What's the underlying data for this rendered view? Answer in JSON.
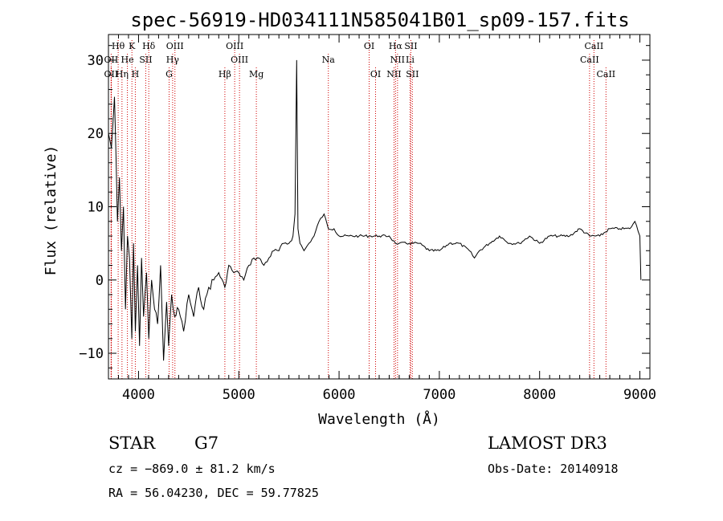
{
  "chart_data": {
    "type": "line",
    "title": "spec-56919-HD034111N585041B01_sp09-157.fits",
    "xlabel": "Wavelength (Å)",
    "ylabel": "Flux (relative)",
    "xlim": [
      3700,
      9100
    ],
    "ylim": [
      -13.5,
      33.5
    ],
    "x_ticks": [
      4000,
      5000,
      6000,
      7000,
      8000,
      9000
    ],
    "y_ticks": [
      -10,
      0,
      10,
      20,
      30
    ],
    "series": [
      {
        "name": "flux",
        "x": [
          3700,
          3730,
          3760,
          3790,
          3810,
          3830,
          3850,
          3870,
          3890,
          3910,
          3933,
          3950,
          3968,
          3990,
          4010,
          4030,
          4050,
          4080,
          4102,
          4130,
          4160,
          4190,
          4220,
          4250,
          4280,
          4300,
          4330,
          4360,
          4400,
          4450,
          4500,
          4550,
          4600,
          4650,
          4700,
          4750,
          4800,
          4861,
          4900,
          4950,
          5000,
          5050,
          5100,
          5150,
          5200,
          5250,
          5300,
          5350,
          5400,
          5450,
          5500,
          5540,
          5560,
          5577,
          5590,
          5610,
          5650,
          5700,
          5750,
          5800,
          5850,
          5893,
          5950,
          6000,
          6100,
          6200,
          6300,
          6400,
          6500,
          6563,
          6600,
          6700,
          6800,
          6900,
          7000,
          7100,
          7200,
          7300,
          7350,
          7400,
          7500,
          7600,
          7700,
          7800,
          7900,
          8000,
          8100,
          8200,
          8300,
          8400,
          8500,
          8600,
          8700,
          8800,
          8900,
          8950,
          9000,
          9010
        ],
        "y": [
          20,
          18,
          25,
          8,
          14,
          4,
          10,
          -4,
          6,
          3,
          -8,
          5,
          -7,
          2,
          -9,
          3,
          -5,
          1,
          -8,
          0,
          -4,
          -6,
          2,
          -11,
          -3,
          -9,
          -2,
          -5,
          -4,
          -7,
          -2,
          -5,
          -1,
          -4,
          -1,
          0,
          1,
          -1,
          2,
          1,
          1,
          0,
          2,
          3,
          3,
          2,
          3,
          4,
          4,
          5,
          5,
          6,
          9,
          30,
          7,
          5,
          4,
          5,
          6,
          8,
          9,
          7,
          7,
          6,
          6,
          6,
          6,
          6,
          6,
          5,
          5,
          5,
          5,
          4,
          4,
          5,
          5,
          4,
          3,
          4,
          5,
          6,
          5,
          5,
          6,
          5,
          6,
          6,
          6,
          7,
          6,
          6,
          7,
          7,
          7,
          8,
          6,
          0
        ]
      }
    ],
    "emission_lines": [
      {
        "name": "Hθ",
        "wl": 3797,
        "row": 0,
        "align": "middle"
      },
      {
        "name": "K",
        "wl": 3934,
        "row": 0,
        "align": "middle"
      },
      {
        "name": "Hδ",
        "wl": 4102,
        "row": 0,
        "align": "middle"
      },
      {
        "name": "OIII",
        "wl": 4363,
        "row": 0,
        "align": "middle"
      },
      {
        "name": "OIII",
        "wl": 4959,
        "row": 0,
        "align": "middle"
      },
      {
        "name": "OI",
        "wl": 6300,
        "row": 0,
        "align": "middle"
      },
      {
        "name": "Hα",
        "wl": 6563,
        "row": 0,
        "align": "middle"
      },
      {
        "name": "SII",
        "wl": 6716,
        "row": 0,
        "align": "middle"
      },
      {
        "name": "CaII",
        "wl": 8542,
        "row": 0,
        "align": "middle"
      },
      {
        "name": "OII",
        "wl": 3727,
        "row": 1,
        "align": "middle"
      },
      {
        "name": "He",
        "wl": 3889,
        "row": 1,
        "align": "middle"
      },
      {
        "name": "SII",
        "wl": 4072,
        "row": 1,
        "align": "middle"
      },
      {
        "name": "Hγ",
        "wl": 4340,
        "row": 1,
        "align": "middle"
      },
      {
        "name": "OIII",
        "wl": 5007,
        "row": 1,
        "align": "middle"
      },
      {
        "name": "NII",
        "wl": 6583,
        "row": 1,
        "align": "middle"
      },
      {
        "name": "Li",
        "wl": 6708,
        "row": 1,
        "align": "middle"
      },
      {
        "name": "CaII",
        "wl": 8498,
        "row": 1,
        "align": "middle"
      },
      {
        "name": "Na",
        "wl": 5893,
        "row": 1,
        "align": "middle"
      },
      {
        "name": "OII",
        "wl": 3727,
        "row": 2,
        "align": "middle"
      },
      {
        "name": "Hη",
        "wl": 3835,
        "row": 2,
        "align": "middle"
      },
      {
        "name": "H",
        "wl": 3968,
        "row": 2,
        "align": "middle"
      },
      {
        "name": "G",
        "wl": 4305,
        "row": 2,
        "align": "middle"
      },
      {
        "name": "Hβ",
        "wl": 4861,
        "row": 2,
        "align": "middle"
      },
      {
        "name": "Mg",
        "wl": 5175,
        "row": 2,
        "align": "middle"
      },
      {
        "name": "OI",
        "wl": 6364,
        "row": 2,
        "align": "middle"
      },
      {
        "name": "NII",
        "wl": 6548,
        "row": 2,
        "align": "middle"
      },
      {
        "name": "SII",
        "wl": 6731,
        "row": 2,
        "align": "middle"
      },
      {
        "name": "CaII",
        "wl": 8662,
        "row": 2,
        "align": "middle"
      }
    ],
    "line_color": "#d00000",
    "spectrum_color": "#000000"
  },
  "info": {
    "class": "STAR",
    "subclass": "G7",
    "survey": "LAMOST DR3",
    "cz": "cz = −869.0 ± 81.2 km/s",
    "obs_date": "Obs-Date: 20140918",
    "coords": "RA =  56.04230, DEC =  59.77825"
  }
}
